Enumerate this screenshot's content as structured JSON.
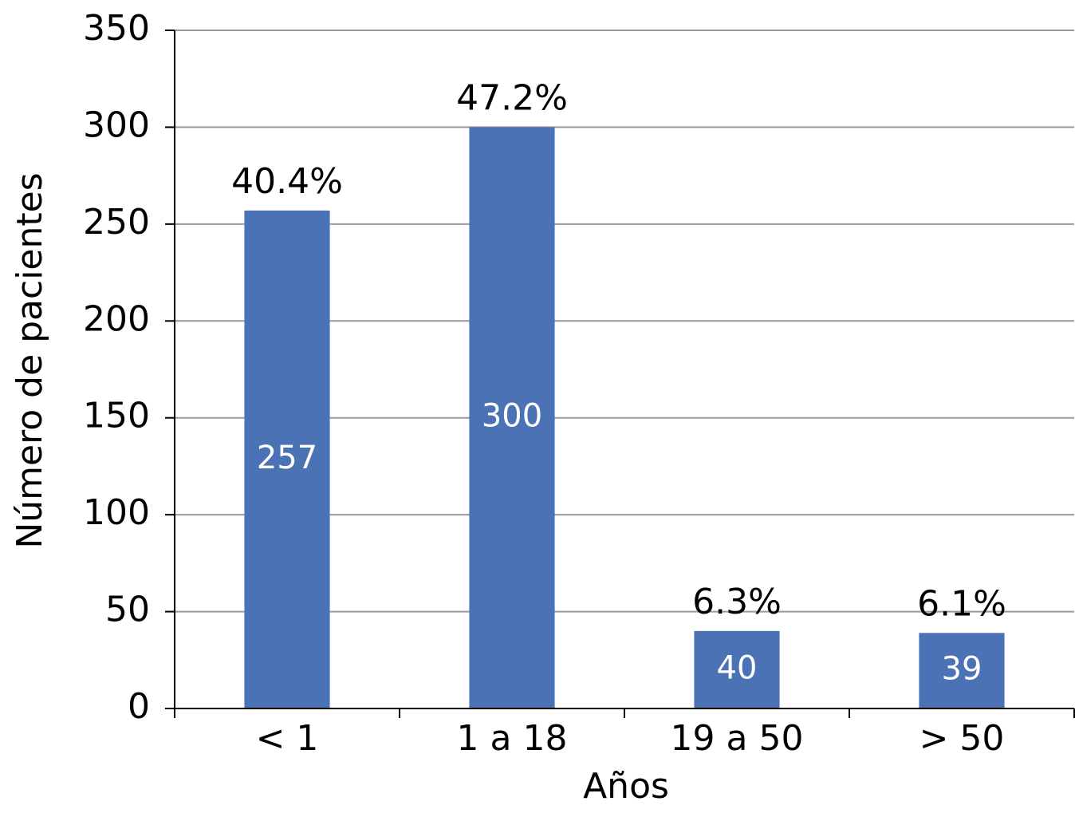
{
  "chart_data": {
    "type": "bar",
    "x_label": "Años",
    "y_label": "Número de pacientes",
    "categories": [
      "< 1",
      "1 a 18",
      "19 a 50",
      "> 50"
    ],
    "values": [
      257,
      300,
      40,
      39
    ],
    "percent_labels": [
      "40.4%",
      "47.2%",
      "6.3%",
      "6.1%"
    ],
    "color": "#4a72b5",
    "ylim": [
      0,
      350
    ],
    "yticks": [
      0,
      50,
      100,
      150,
      200,
      250,
      300,
      350
    ],
    "grid": true
  }
}
